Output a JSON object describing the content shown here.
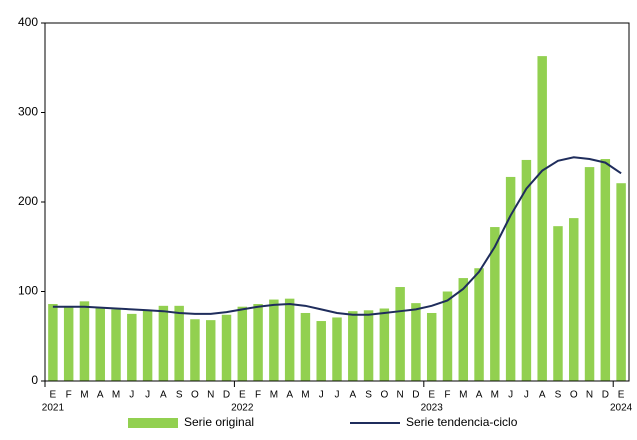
{
  "chart_data": {
    "type": "bar-line",
    "categories": [
      "E",
      "F",
      "M",
      "A",
      "M",
      "J",
      "J",
      "A",
      "S",
      "O",
      "N",
      "D",
      "E",
      "F",
      "M",
      "A",
      "M",
      "J",
      "J",
      "A",
      "S",
      "O",
      "N",
      "D",
      "E",
      "F",
      "M",
      "A",
      "M",
      "J",
      "J",
      "A",
      "S",
      "O",
      "N",
      "D",
      "E"
    ],
    "years": [
      "2021",
      "2022",
      "2023",
      "2024"
    ],
    "series": [
      {
        "name": "Serie original",
        "type": "bar",
        "color": "#92d050",
        "values": [
          86,
          83,
          89,
          82,
          80,
          75,
          79,
          84,
          84,
          69,
          68,
          74,
          83,
          86,
          91,
          92,
          76,
          67,
          71,
          78,
          79,
          81,
          105,
          87,
          76,
          100,
          115,
          126,
          172,
          228,
          247,
          363,
          173,
          182,
          239,
          248,
          221
        ]
      },
      {
        "name": "Serie tendencia-ciclo",
        "type": "line",
        "color": "#1f2d5c",
        "values": [
          83,
          83,
          83,
          82,
          81,
          80,
          79,
          78,
          76,
          75,
          75,
          77,
          80,
          83,
          85,
          86,
          84,
          80,
          76,
          74,
          74,
          76,
          78,
          80,
          84,
          90,
          103,
          122,
          150,
          185,
          215,
          235,
          246,
          250,
          248,
          244,
          232
        ]
      }
    ],
    "ylim": [
      0,
      400
    ],
    "yticks": [
      0,
      100,
      200,
      300,
      400
    ]
  }
}
